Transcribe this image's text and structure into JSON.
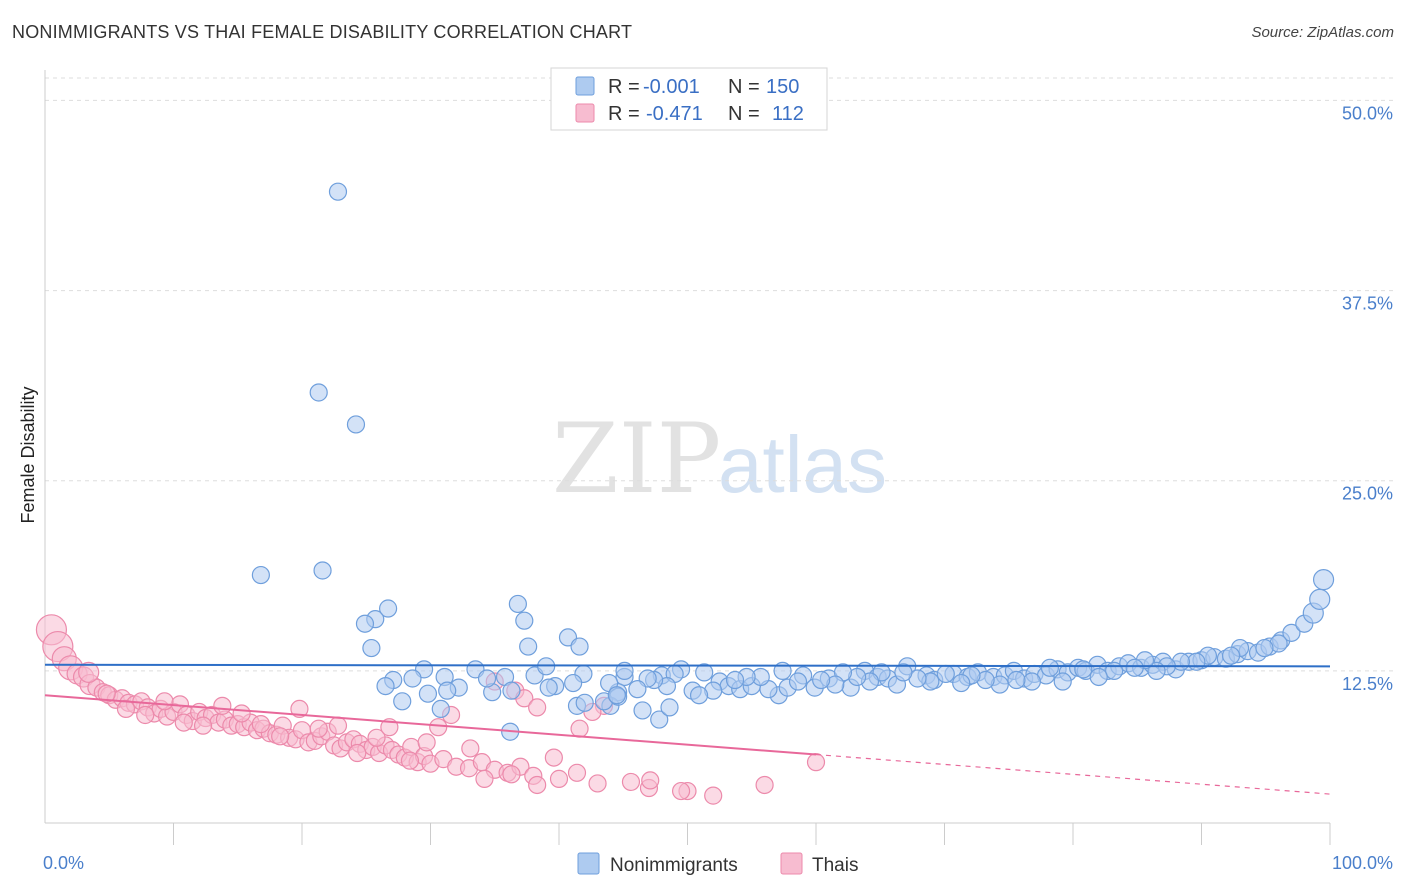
{
  "header": {
    "title": "NONIMMIGRANTS VS THAI FEMALE DISABILITY CORRELATION CHART",
    "source": "Source: ZipAtlas.com"
  },
  "watermark": {
    "part1": "ZIP",
    "part2": "atlas"
  },
  "legend_top": {
    "rows": [
      {
        "r_label": "R =",
        "r_value": "-0.001",
        "n_label": "N =",
        "n_value": "150",
        "color": "#8fb8ec"
      },
      {
        "r_label": "R =",
        "r_value": "-0.471",
        "n_label": "N =",
        "n_value": "112",
        "color": "#f4a6c0"
      }
    ]
  },
  "legend_bottom": {
    "items": [
      {
        "label": "Nonimmigrants",
        "color": "#8fb8ec"
      },
      {
        "label": "Thais",
        "color": "#f4a6c0"
      }
    ]
  },
  "chart_data": {
    "type": "scatter",
    "ylabel": "Female Disability",
    "xlim": [
      0,
      100
    ],
    "ylim": [
      2.5,
      52
    ],
    "x_ticks": [
      {
        "value": 0,
        "label": "0.0%"
      },
      {
        "value": 100,
        "label": "100.0%"
      }
    ],
    "x_minor_ticks": [
      10,
      20,
      30,
      40,
      50,
      60,
      70,
      80,
      90,
      100
    ],
    "y_ticks": [
      {
        "value": 12.5,
        "label": "12.5%"
      },
      {
        "value": 25.0,
        "label": "25.0%"
      },
      {
        "value": 37.5,
        "label": "37.5%"
      },
      {
        "value": 50.0,
        "label": "50.0%"
      }
    ],
    "grid": true,
    "colors": {
      "nonimmigrants_fill": "#aecbf0",
      "nonimmigrants_stroke": "#6f9fdc",
      "nonimmigrants_line": "#2e6fc7",
      "thais_fill": "#f7bcd0",
      "thais_stroke": "#ec8aab",
      "thais_line": "#e8689a"
    },
    "series": [
      {
        "name": "Nonimmigrants",
        "trend": {
          "x": [
            0,
            100
          ],
          "y": [
            12.9,
            12.8
          ]
        },
        "points": [
          [
            22.8,
            44
          ],
          [
            21.3,
            30.8
          ],
          [
            24.2,
            28.7
          ],
          [
            16.8,
            18.8
          ],
          [
            21.6,
            19.1
          ],
          [
            26.7,
            16.6
          ],
          [
            25.7,
            15.9
          ],
          [
            24.9,
            15.6
          ],
          [
            37.3,
            15.8
          ],
          [
            36.8,
            16.9
          ],
          [
            40.7,
            14.7
          ],
          [
            41.6,
            14.1
          ],
          [
            37.6,
            14.1
          ],
          [
            25.4,
            14.0
          ],
          [
            29.5,
            12.6
          ],
          [
            33.5,
            12.6
          ],
          [
            27.1,
            11.9
          ],
          [
            35.8,
            12.1
          ],
          [
            39.7,
            11.5
          ],
          [
            45.1,
            12.1
          ],
          [
            45.1,
            12.5
          ],
          [
            49.5,
            12.6
          ],
          [
            48.0,
            12.2
          ],
          [
            50.4,
            11.2
          ],
          [
            52.5,
            11.8
          ],
          [
            53.2,
            11.5
          ],
          [
            54.1,
            11.3
          ],
          [
            55.0,
            11.5
          ],
          [
            57.1,
            10.9
          ],
          [
            57.8,
            11.4
          ],
          [
            59.0,
            12.2
          ],
          [
            59.9,
            11.4
          ],
          [
            61.0,
            12.0
          ],
          [
            62.7,
            11.4
          ],
          [
            63.8,
            12.5
          ],
          [
            64.8,
            12.1
          ],
          [
            65.6,
            12.0
          ],
          [
            66.3,
            11.6
          ],
          [
            67.1,
            12.8
          ],
          [
            68.6,
            12.2
          ],
          [
            69.2,
            11.9
          ],
          [
            70.7,
            12.3
          ],
          [
            71.8,
            12.1
          ],
          [
            72.6,
            12.4
          ],
          [
            73.8,
            12.1
          ],
          [
            74.7,
            12.2
          ],
          [
            75.4,
            12.5
          ],
          [
            76.2,
            12.0
          ],
          [
            77.0,
            12.3
          ],
          [
            77.9,
            12.2
          ],
          [
            78.8,
            12.6
          ],
          [
            79.6,
            12.4
          ],
          [
            80.4,
            12.7
          ],
          [
            81.0,
            12.5
          ],
          [
            81.9,
            12.9
          ],
          [
            82.7,
            12.5
          ],
          [
            83.6,
            12.8
          ],
          [
            84.3,
            13.0
          ],
          [
            85.3,
            12.7
          ],
          [
            86.2,
            12.9
          ],
          [
            87.0,
            13.1
          ],
          [
            88.0,
            12.6
          ],
          [
            89.0,
            13.1
          ],
          [
            90.0,
            13.2
          ],
          [
            91.0,
            13.4
          ],
          [
            91.9,
            13.3
          ],
          [
            92.8,
            13.6
          ],
          [
            93.6,
            13.8
          ],
          [
            94.4,
            13.7
          ],
          [
            95.3,
            14.1
          ],
          [
            96.2,
            14.5
          ],
          [
            97.0,
            15.0
          ],
          [
            98.0,
            15.6
          ],
          [
            98.7,
            16.3
          ],
          [
            99.2,
            17.2
          ],
          [
            99.5,
            18.5
          ],
          [
            96.0,
            14.3
          ],
          [
            94.9,
            14.0
          ],
          [
            93.0,
            14.0
          ],
          [
            92.3,
            13.5
          ],
          [
            90.5,
            13.5
          ],
          [
            89.6,
            13.1
          ],
          [
            88.4,
            13.1
          ],
          [
            87.3,
            12.8
          ],
          [
            86.5,
            12.5
          ],
          [
            85.6,
            13.2
          ],
          [
            84.8,
            12.7
          ],
          [
            83.2,
            12.5
          ],
          [
            82.0,
            12.1
          ],
          [
            80.8,
            12.6
          ],
          [
            79.2,
            11.8
          ],
          [
            78.2,
            12.7
          ],
          [
            76.8,
            11.8
          ],
          [
            75.6,
            11.9
          ],
          [
            74.3,
            11.6
          ],
          [
            73.2,
            11.9
          ],
          [
            72.1,
            12.2
          ],
          [
            71.3,
            11.7
          ],
          [
            70.1,
            12.3
          ],
          [
            68.9,
            11.8
          ],
          [
            67.9,
            12.0
          ],
          [
            66.8,
            12.4
          ],
          [
            65.1,
            12.4
          ],
          [
            64.2,
            11.8
          ],
          [
            63.2,
            12.1
          ],
          [
            62.1,
            12.4
          ],
          [
            61.5,
            11.6
          ],
          [
            60.4,
            11.9
          ],
          [
            58.6,
            11.8
          ],
          [
            57.4,
            12.5
          ],
          [
            56.3,
            11.3
          ],
          [
            55.7,
            12.1
          ],
          [
            54.6,
            12.1
          ],
          [
            53.7,
            11.9
          ],
          [
            52.0,
            11.2
          ],
          [
            51.3,
            12.4
          ],
          [
            50.9,
            10.9
          ],
          [
            49.0,
            12.3
          ],
          [
            48.4,
            11.5
          ],
          [
            47.4,
            11.9
          ],
          [
            46.9,
            12.0
          ],
          [
            46.1,
            11.3
          ],
          [
            44.6,
            11.1
          ],
          [
            44.0,
            10.2
          ],
          [
            43.5,
            10.5
          ],
          [
            43.9,
            11.7
          ],
          [
            41.9,
            12.3
          ],
          [
            41.1,
            11.7
          ],
          [
            39.2,
            11.4
          ],
          [
            38.1,
            12.2
          ],
          [
            36.3,
            11.2
          ],
          [
            34.8,
            11.1
          ],
          [
            34.4,
            12.0
          ],
          [
            32.2,
            11.4
          ],
          [
            31.1,
            12.1
          ],
          [
            31.3,
            11.2
          ],
          [
            29.8,
            11.0
          ],
          [
            28.6,
            12.0
          ],
          [
            27.8,
            10.5
          ],
          [
            26.5,
            11.5
          ],
          [
            41.4,
            10.2
          ],
          [
            42.0,
            10.4
          ],
          [
            44.6,
            10.8
          ],
          [
            46.5,
            9.9
          ],
          [
            47.8,
            9.3
          ],
          [
            48.6,
            10.1
          ],
          [
            44.5,
            10.9
          ],
          [
            30.8,
            10.0
          ],
          [
            39.0,
            12.8
          ],
          [
            36.2,
            8.5
          ]
        ]
      },
      {
        "name": "Thais",
        "trend": {
          "x": [
            0,
            60
          ],
          "y": [
            10.9,
            7.0
          ]
        },
        "trend_dashed": {
          "x": [
            60,
            100
          ],
          "y": [
            7.0,
            4.4
          ]
        },
        "points": [
          [
            0.5,
            15.2
          ],
          [
            1.0,
            14.1
          ],
          [
            1.5,
            13.3
          ],
          [
            2.0,
            12.7
          ],
          [
            2.5,
            12.3
          ],
          [
            3.0,
            12.1
          ],
          [
            3.5,
            11.6
          ],
          [
            4.0,
            11.4
          ],
          [
            4.5,
            11.1
          ],
          [
            5.0,
            10.9
          ],
          [
            5.5,
            10.6
          ],
          [
            6.0,
            10.7
          ],
          [
            6.5,
            10.4
          ],
          [
            7.0,
            10.3
          ],
          [
            7.5,
            10.5
          ],
          [
            8.0,
            10.1
          ],
          [
            8.5,
            9.7
          ],
          [
            9.0,
            10.0
          ],
          [
            9.5,
            9.5
          ],
          [
            10.0,
            9.8
          ],
          [
            10.5,
            10.3
          ],
          [
            11.0,
            9.6
          ],
          [
            11.5,
            9.2
          ],
          [
            12.0,
            9.8
          ],
          [
            12.5,
            9.4
          ],
          [
            13.0,
            9.6
          ],
          [
            13.5,
            9.1
          ],
          [
            14.0,
            9.3
          ],
          [
            14.5,
            8.9
          ],
          [
            15.0,
            9.0
          ],
          [
            15.5,
            8.8
          ],
          [
            16.0,
            9.1
          ],
          [
            16.5,
            8.6
          ],
          [
            17.0,
            8.7
          ],
          [
            17.5,
            8.4
          ],
          [
            18.0,
            8.3
          ],
          [
            18.5,
            8.9
          ],
          [
            19.0,
            8.1
          ],
          [
            19.5,
            8.0
          ],
          [
            20.0,
            8.6
          ],
          [
            20.5,
            7.8
          ],
          [
            21.0,
            7.9
          ],
          [
            21.5,
            8.2
          ],
          [
            22.0,
            8.5
          ],
          [
            22.5,
            7.6
          ],
          [
            23.0,
            7.4
          ],
          [
            23.5,
            7.8
          ],
          [
            24.0,
            8.0
          ],
          [
            24.5,
            7.7
          ],
          [
            25.0,
            7.3
          ],
          [
            25.5,
            7.5
          ],
          [
            26.0,
            7.1
          ],
          [
            26.5,
            7.6
          ],
          [
            27.0,
            7.3
          ],
          [
            27.5,
            7.0
          ],
          [
            28.0,
            6.8
          ],
          [
            28.5,
            7.5
          ],
          [
            29.0,
            6.5
          ],
          [
            29.5,
            6.9
          ],
          [
            30.0,
            6.4
          ],
          [
            31.0,
            6.7
          ],
          [
            32.0,
            6.2
          ],
          [
            33.0,
            6.1
          ],
          [
            34.0,
            6.5
          ],
          [
            35.0,
            6.0
          ],
          [
            36.0,
            5.8
          ],
          [
            37.0,
            6.2
          ],
          [
            38.0,
            5.6
          ],
          [
            40.0,
            5.4
          ],
          [
            43.0,
            5.1
          ],
          [
            47.0,
            4.8
          ],
          [
            50.0,
            4.6
          ],
          [
            52.0,
            4.3
          ],
          [
            56.0,
            5.0
          ],
          [
            60.0,
            6.5
          ],
          [
            3.4,
            12.4
          ],
          [
            4.8,
            11.0
          ],
          [
            6.3,
            10.0
          ],
          [
            7.8,
            9.6
          ],
          [
            9.3,
            10.5
          ],
          [
            10.8,
            9.1
          ],
          [
            12.3,
            8.9
          ],
          [
            13.8,
            10.2
          ],
          [
            15.3,
            9.7
          ],
          [
            16.8,
            9.0
          ],
          [
            18.3,
            8.2
          ],
          [
            19.8,
            10.0
          ],
          [
            21.3,
            8.7
          ],
          [
            22.8,
            8.9
          ],
          [
            24.3,
            7.1
          ],
          [
            25.8,
            8.1
          ],
          [
            26.8,
            8.8
          ],
          [
            28.4,
            6.6
          ],
          [
            29.7,
            7.8
          ],
          [
            30.6,
            8.8
          ],
          [
            31.6,
            9.6
          ],
          [
            33.1,
            7.4
          ],
          [
            34.2,
            5.4
          ],
          [
            36.3,
            5.7
          ],
          [
            38.3,
            5.0
          ],
          [
            39.6,
            6.8
          ],
          [
            41.4,
            5.8
          ],
          [
            43.5,
            10.2
          ],
          [
            45.6,
            5.2
          ],
          [
            47.1,
            5.3
          ],
          [
            49.5,
            4.6
          ],
          [
            35.0,
            11.8
          ],
          [
            36.6,
            11.2
          ],
          [
            37.3,
            10.7
          ],
          [
            38.3,
            10.1
          ],
          [
            41.6,
            8.7
          ],
          [
            42.6,
            9.8
          ]
        ]
      }
    ]
  }
}
